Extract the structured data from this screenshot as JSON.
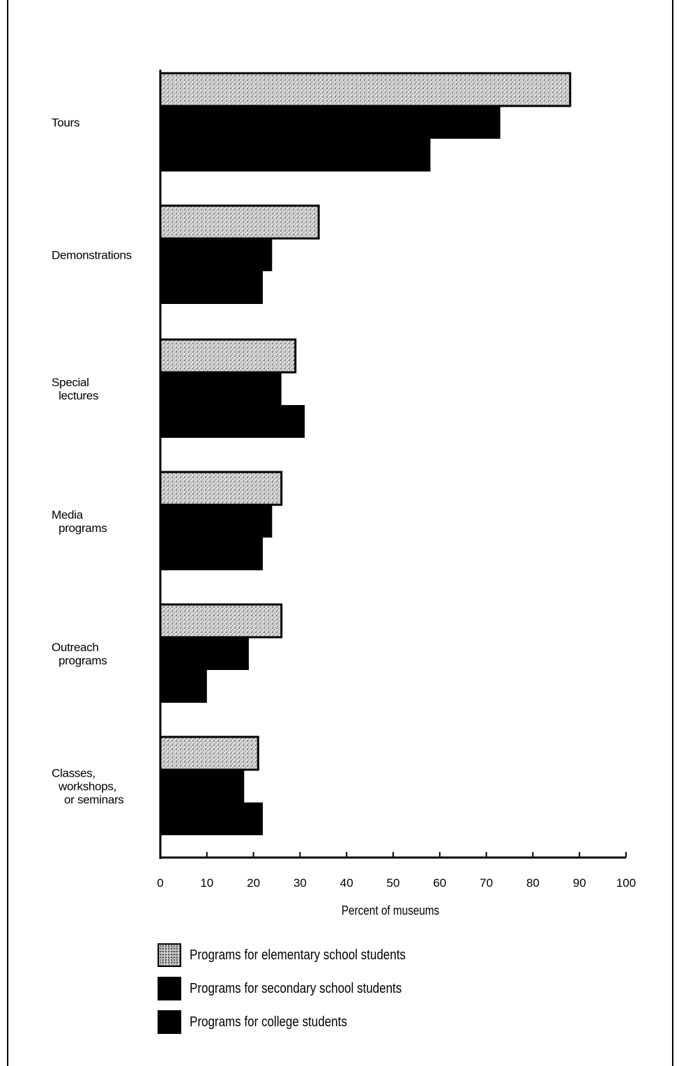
{
  "chart_data": {
    "type": "bar",
    "orientation": "horizontal",
    "categories": [
      [
        "Tours"
      ],
      [
        "Demonstrations"
      ],
      [
        "Special",
        "lectures"
      ],
      [
        "Media",
        "programs"
      ],
      [
        "Outreach",
        "programs"
      ],
      [
        "Classes,",
        "workshops,",
        "or seminars"
      ]
    ],
    "series": [
      {
        "name": "Programs for elementary school students",
        "values": [
          88,
          34,
          29,
          26,
          26,
          21
        ],
        "pattern": "stipple"
      },
      {
        "name": "Programs for secondary school students",
        "values": [
          73,
          24,
          26,
          24,
          19,
          18
        ],
        "pattern": "solid"
      },
      {
        "name": "Programs for college students",
        "values": [
          58,
          22,
          31,
          22,
          10,
          22
        ],
        "pattern": "solid"
      }
    ],
    "xlabel": "Percent of museums",
    "xlim": [
      0,
      100
    ],
    "xticks": [
      "0",
      "10",
      "20",
      "30",
      "40",
      "50",
      "60",
      "70",
      "80",
      "90",
      "100"
    ],
    "legend_position": "bottom",
    "colors": {
      "elementary": "#d8d8d8",
      "solid": "#000000"
    }
  }
}
